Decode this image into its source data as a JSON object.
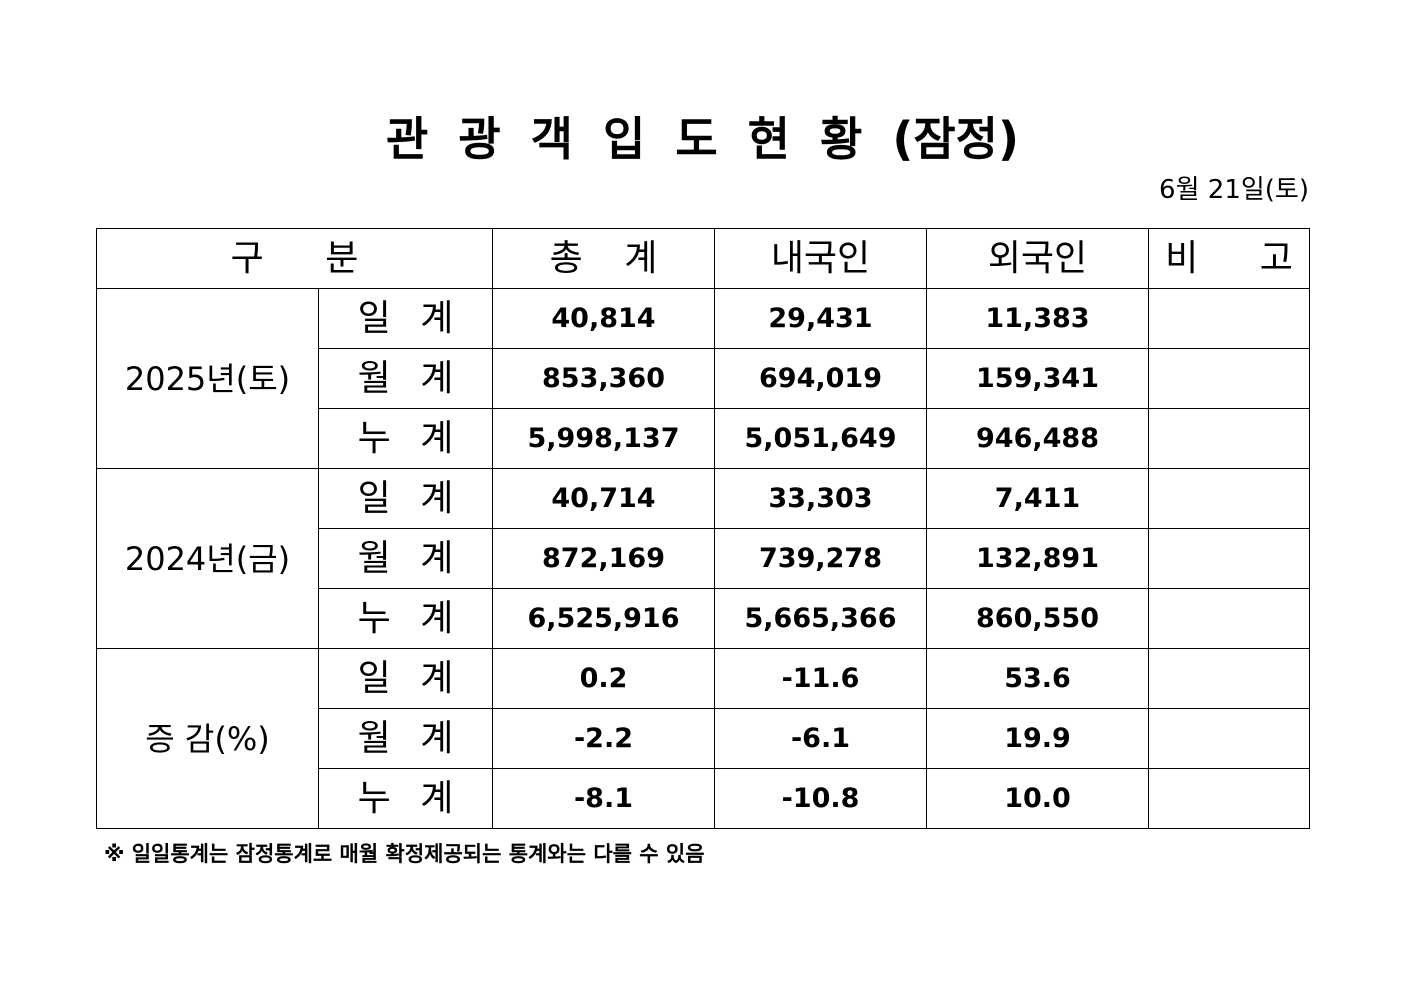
{
  "title": "관 광 객 입 도 현 황 (잠정)",
  "date": "6월 21일(토)",
  "headers": {
    "category": "구 분",
    "total": "총 계",
    "domestic": "내국인",
    "foreign": "외국인",
    "remarks": "비 고"
  },
  "groups": [
    {
      "label": "2025년(토)",
      "rows": [
        {
          "label": "일 계",
          "total": "40,814",
          "domestic": "29,431",
          "foreign": "11,383",
          "remarks": ""
        },
        {
          "label": "월 계",
          "total": "853,360",
          "domestic": "694,019",
          "foreign": "159,341",
          "remarks": ""
        },
        {
          "label": "누 계",
          "total": "5,998,137",
          "domestic": "5,051,649",
          "foreign": "946,488",
          "remarks": ""
        }
      ]
    },
    {
      "label": "2024년(금)",
      "rows": [
        {
          "label": "일 계",
          "total": "40,714",
          "domestic": "33,303",
          "foreign": "7,411",
          "remarks": ""
        },
        {
          "label": "월 계",
          "total": "872,169",
          "domestic": "739,278",
          "foreign": "132,891",
          "remarks": ""
        },
        {
          "label": "누 계",
          "total": "6,525,916",
          "domestic": "5,665,366",
          "foreign": "860,550",
          "remarks": ""
        }
      ]
    },
    {
      "label": "증 감(%)",
      "rows": [
        {
          "label": "일 계",
          "total": "0.2",
          "domestic": "-11.6",
          "foreign": "53.6",
          "remarks": ""
        },
        {
          "label": "월 계",
          "total": "-2.2",
          "domestic": "-6.1",
          "foreign": "19.9",
          "remarks": ""
        },
        {
          "label": "누 계",
          "total": "-8.1",
          "domestic": "-10.8",
          "foreign": "10.0",
          "remarks": ""
        }
      ]
    }
  ],
  "footnote": "※ 일일통계는 잠정통계로 매월 확정제공되는 통계와는 다를 수 있음"
}
